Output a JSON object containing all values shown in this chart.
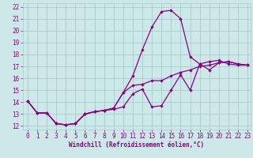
{
  "xlabel": "Windchill (Refroidissement éolien,°C)",
  "xlim": [
    -0.5,
    23.3
  ],
  "ylim": [
    11.7,
    22.3
  ],
  "xticks": [
    0,
    1,
    2,
    3,
    4,
    5,
    6,
    7,
    8,
    9,
    10,
    11,
    12,
    13,
    14,
    15,
    16,
    17,
    18,
    19,
    20,
    21,
    22,
    23
  ],
  "yticks": [
    12,
    13,
    14,
    15,
    16,
    17,
    18,
    19,
    20,
    21,
    22
  ],
  "bg_color": "#cce8e8",
  "grid_color": "#aacccc",
  "line_color": "#880088",
  "line1_x": [
    0,
    1,
    2,
    3,
    4,
    5,
    6,
    7,
    8,
    9,
    10,
    11,
    12,
    13,
    14,
    15,
    16,
    17,
    18,
    19,
    20,
    21,
    22,
    23
  ],
  "line1_y": [
    14.1,
    13.1,
    13.1,
    12.2,
    12.1,
    12.2,
    13.0,
    13.2,
    13.3,
    13.4,
    13.6,
    14.7,
    15.1,
    13.6,
    13.7,
    15.0,
    16.3,
    15.0,
    17.2,
    16.7,
    17.3,
    17.4,
    17.2,
    17.1
  ],
  "line2_x": [
    0,
    1,
    2,
    3,
    4,
    5,
    6,
    7,
    8,
    9,
    10,
    11,
    12,
    13,
    14,
    15,
    16,
    17,
    18,
    19,
    20,
    21,
    22,
    23
  ],
  "line2_y": [
    14.1,
    13.1,
    13.1,
    12.2,
    12.1,
    12.2,
    13.0,
    13.2,
    13.3,
    13.5,
    14.8,
    16.2,
    18.4,
    20.3,
    21.6,
    21.7,
    21.0,
    17.8,
    17.2,
    17.4,
    17.5,
    17.2,
    17.1,
    17.1
  ],
  "line3_x": [
    0,
    1,
    2,
    3,
    4,
    5,
    6,
    7,
    8,
    9,
    10,
    11,
    12,
    13,
    14,
    15,
    16,
    17,
    18,
    19,
    20,
    21,
    22,
    23
  ],
  "line3_y": [
    14.1,
    13.1,
    13.1,
    12.2,
    12.1,
    12.2,
    13.0,
    13.2,
    13.3,
    13.5,
    14.8,
    15.4,
    15.5,
    15.8,
    15.8,
    16.2,
    16.5,
    16.7,
    17.0,
    17.1,
    17.3,
    17.4,
    17.2,
    17.1
  ],
  "tick_fontsize": 5.5,
  "label_fontsize": 5.5
}
